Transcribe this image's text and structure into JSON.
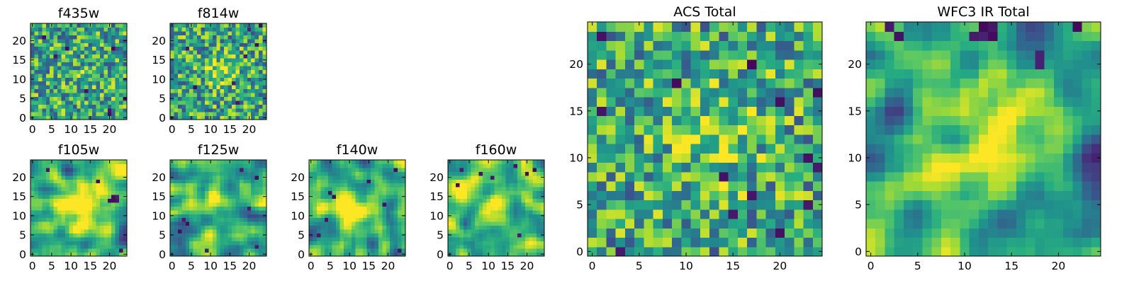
{
  "figure": {
    "description_title": ""
  },
  "chart_data": [
    {
      "type": "heatmap",
      "title": "f435w",
      "grid_size": 25,
      "xlim": [
        0,
        24
      ],
      "ylim": [
        0,
        24
      ],
      "xticks": [
        0,
        5,
        10,
        15,
        20
      ],
      "yticks": [
        0,
        5,
        10,
        15,
        20
      ],
      "xtick_labels": [
        "0",
        "5",
        "10",
        "15",
        "20"
      ],
      "ytick_labels": [
        "0",
        "5",
        "10",
        "15",
        "20"
      ],
      "seed": 11,
      "texture": "noise",
      "peak": {
        "x": 12,
        "y": 12,
        "amp": 0.05,
        "sigma": 4,
        "sigma_y": 4
      },
      "darks": [
        [
          6,
          16
        ],
        [
          9,
          18
        ],
        [
          21,
          18
        ],
        [
          20,
          2
        ],
        [
          20,
          1
        ],
        [
          24,
          5
        ],
        [
          14,
          7
        ],
        [
          3,
          21
        ]
      ]
    },
    {
      "type": "heatmap",
      "title": "f814w",
      "grid_size": 25,
      "xlim": [
        0,
        24
      ],
      "ylim": [
        0,
        24
      ],
      "xticks": [
        0,
        5,
        10,
        15,
        20
      ],
      "yticks": [
        0,
        5,
        10,
        15,
        20
      ],
      "xtick_labels": [
        "0",
        "5",
        "10",
        "15",
        "20"
      ],
      "ytick_labels": [
        "0",
        "5",
        "10",
        "15",
        "20"
      ],
      "seed": 23,
      "texture": "noise",
      "peak": {
        "x": 13,
        "y": 12,
        "amp": 0.3,
        "sigma": 2.5,
        "sigma_y": 2.5
      },
      "darks": [
        [
          20,
          23
        ],
        [
          19,
          16
        ],
        [
          4,
          18
        ],
        [
          17,
          4
        ],
        [
          22,
          19
        ],
        [
          6,
          8
        ],
        [
          23,
          24
        ],
        [
          16,
          9
        ]
      ]
    },
    {
      "type": "heatmap",
      "title": "f105w",
      "grid_size": 25,
      "xlim": [
        0,
        24
      ],
      "ylim": [
        0,
        24
      ],
      "xticks": [
        0,
        5,
        10,
        15,
        20
      ],
      "yticks": [
        0,
        5,
        10,
        15,
        20
      ],
      "xtick_labels": [
        "0",
        "5",
        "10",
        "15",
        "20"
      ],
      "ytick_labels": [
        "0",
        "5",
        "10",
        "15",
        "20"
      ],
      "seed": 37,
      "texture": "smooth",
      "peak": {
        "x": 12,
        "y": 11,
        "amp": 0.45,
        "sigma": 4,
        "sigma_y": 4
      },
      "darks": [
        [
          20,
          14
        ],
        [
          21,
          14
        ],
        [
          22,
          14
        ],
        [
          21,
          15
        ],
        [
          22,
          15
        ],
        [
          17,
          19
        ],
        [
          4,
          22
        ],
        [
          23,
          1
        ]
      ]
    },
    {
      "type": "heatmap",
      "title": "f125w",
      "grid_size": 25,
      "xlim": [
        0,
        24
      ],
      "ylim": [
        0,
        24
      ],
      "xticks": [
        0,
        5,
        10,
        15,
        20
      ],
      "yticks": [
        0,
        5,
        10,
        15,
        20
      ],
      "xtick_labels": [
        "0",
        "5",
        "10",
        "15",
        "20"
      ],
      "ytick_labels": [
        "0",
        "5",
        "10",
        "15",
        "20"
      ],
      "seed": 51,
      "texture": "smooth",
      "peak": {
        "x": 11,
        "y": 12,
        "amp": 0.35,
        "sigma": 2.2,
        "sigma_y": 5
      },
      "darks": [
        [
          18,
          22
        ],
        [
          22,
          20
        ],
        [
          3,
          9
        ],
        [
          4,
          8
        ],
        [
          2,
          6
        ],
        [
          9,
          1
        ],
        [
          22,
          2
        ],
        [
          20,
          12
        ]
      ]
    },
    {
      "type": "heatmap",
      "title": "f140w",
      "grid_size": 25,
      "xlim": [
        0,
        24
      ],
      "ylim": [
        0,
        24
      ],
      "xticks": [
        0,
        5,
        10,
        15,
        20
      ],
      "yticks": [
        0,
        5,
        10,
        15,
        20
      ],
      "xtick_labels": [
        "0",
        "5",
        "10",
        "15",
        "20"
      ],
      "ytick_labels": [
        "0",
        "5",
        "10",
        "15",
        "20"
      ],
      "seed": 67,
      "texture": "smooth",
      "peak": {
        "x": 10,
        "y": 12,
        "amp": 0.45,
        "sigma": 3,
        "sigma_y": 3
      },
      "darks": [
        [
          5,
          16
        ],
        [
          6,
          15
        ],
        [
          4,
          9
        ],
        [
          19,
          13
        ],
        [
          22,
          22
        ],
        [
          23,
          1
        ],
        [
          15,
          19
        ],
        [
          2,
          5
        ]
      ]
    },
    {
      "type": "heatmap",
      "title": "f160w",
      "grid_size": 25,
      "xlim": [
        0,
        24
      ],
      "ylim": [
        0,
        24
      ],
      "xticks": [
        0,
        5,
        10,
        15,
        20
      ],
      "yticks": [
        0,
        5,
        10,
        15,
        20
      ],
      "xtick_labels": [
        "0",
        "5",
        "10",
        "15",
        "20"
      ],
      "ytick_labels": [
        "0",
        "5",
        "10",
        "15",
        "20"
      ],
      "seed": 83,
      "texture": "smooth",
      "peak": {
        "x": 13,
        "y": 12,
        "amp": 0.4,
        "sigma": 3,
        "sigma_y": 3
      },
      "darks": [
        [
          3,
          22
        ],
        [
          8,
          21
        ],
        [
          20,
          21
        ],
        [
          22,
          22
        ],
        [
          2,
          18
        ],
        [
          17,
          23
        ],
        [
          11,
          20
        ],
        [
          18,
          5
        ]
      ]
    },
    {
      "type": "heatmap",
      "title": "ACS Total",
      "grid_size": 25,
      "xlim": [
        0,
        24
      ],
      "ylim": [
        0,
        24
      ],
      "xticks": [
        0,
        5,
        10,
        15,
        20
      ],
      "yticks": [
        0,
        5,
        10,
        15,
        20
      ],
      "xtick_labels": [
        "0",
        "5",
        "10",
        "15",
        "20"
      ],
      "ytick_labels": [
        "0",
        "5",
        "10",
        "15",
        "20"
      ],
      "seed": 97,
      "texture": "noise",
      "peak": {
        "x": 13,
        "y": 13,
        "amp": 0.2,
        "sigma": 4,
        "sigma_y": 4
      },
      "darks": [
        [
          1,
          23
        ],
        [
          9,
          18
        ],
        [
          17,
          20
        ],
        [
          20,
          16
        ],
        [
          24,
          9
        ],
        [
          23,
          10
        ],
        [
          14,
          8
        ],
        [
          17,
          6
        ],
        [
          15,
          4
        ],
        [
          20,
          2
        ],
        [
          23,
          5
        ],
        [
          3,
          0
        ],
        [
          1,
          15
        ],
        [
          24,
          17
        ]
      ]
    },
    {
      "type": "heatmap",
      "title": "WFC3 IR Total",
      "grid_size": 25,
      "xlim": [
        0,
        24
      ],
      "ylim": [
        0,
        24
      ],
      "xticks": [
        0,
        5,
        10,
        15,
        20
      ],
      "yticks": [
        0,
        5,
        10,
        15,
        20
      ],
      "xtick_labels": [
        "0",
        "5",
        "10",
        "15",
        "20"
      ],
      "ytick_labels": [
        "0",
        "5",
        "10",
        "15",
        "20"
      ],
      "seed": 113,
      "texture": "smooth",
      "peak": {
        "x": 13,
        "y": 11,
        "amp": 0.5,
        "sigma": 3.5,
        "sigma_y": 3
      },
      "darks": [
        [
          11,
          23
        ],
        [
          12,
          23
        ],
        [
          13,
          23
        ],
        [
          12,
          24
        ],
        [
          13,
          24
        ],
        [
          18,
          20
        ],
        [
          18,
          21
        ],
        [
          22,
          24
        ],
        [
          3,
          23
        ],
        [
          2,
          24
        ]
      ]
    }
  ]
}
